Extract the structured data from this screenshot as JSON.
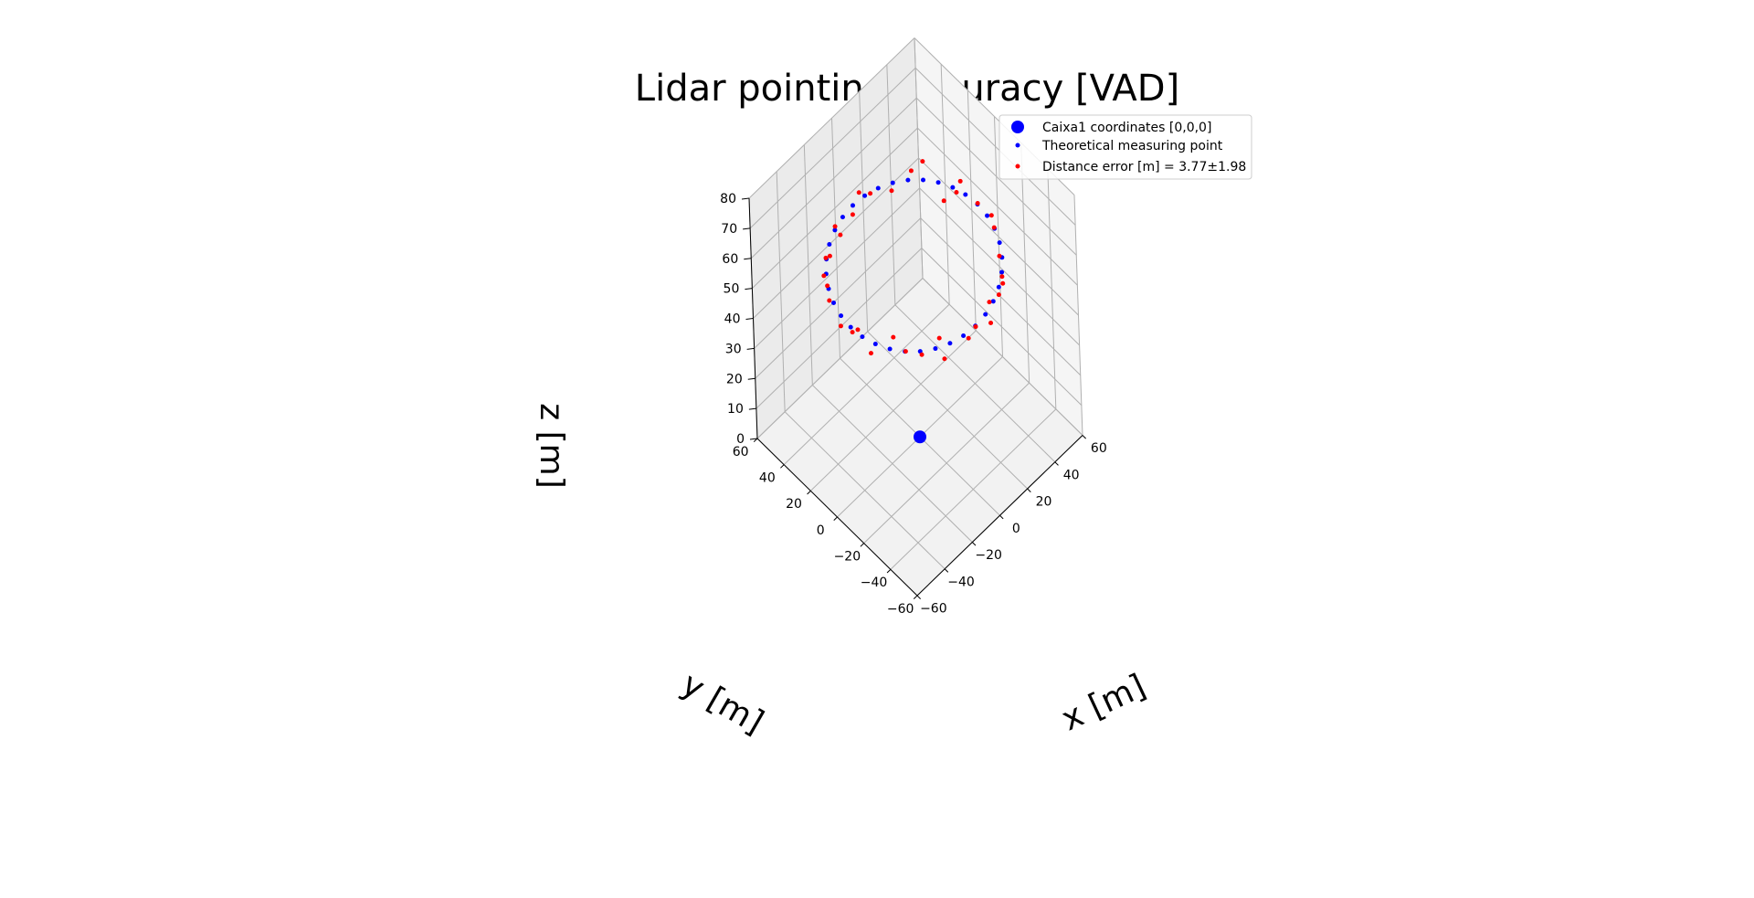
{
  "chart_data": {
    "type": "scatter",
    "projection": "3d",
    "title": "Lidar pointing accuracy [VAD]",
    "xlabel": "x [m]",
    "ylabel": "y [m]",
    "zlabel": "z [m]",
    "xlim": [
      -60,
      60
    ],
    "ylim": [
      -60,
      60
    ],
    "zlim": [
      0,
      80
    ],
    "xticks": [
      -60,
      -40,
      -20,
      0,
      20,
      40,
      60
    ],
    "yticks": [
      -60,
      -40,
      -20,
      0,
      20,
      40,
      60
    ],
    "zticks": [
      0,
      10,
      20,
      30,
      40,
      50,
      60,
      70,
      80
    ],
    "grid": true,
    "legend": {
      "location": "upper-right",
      "entries": [
        {
          "label": "Caixa1 coordinates [0,0,0]",
          "color": "#0000ff",
          "marker": "large-dot"
        },
        {
          "label": "Theoretical measuring point",
          "color": "#0000ff",
          "marker": "small-dot"
        },
        {
          "label": "Distance error [m] = 3.77±1.98",
          "color": "#ff0000",
          "marker": "small-dot"
        }
      ]
    },
    "series": [
      {
        "name": "Caixa1 coordinates [0,0,0]",
        "color": "#0000ff",
        "points": [
          [
            0,
            0,
            0
          ]
        ]
      },
      {
        "name": "Theoretical measuring point",
        "color": "#0000ff",
        "points": [
          [
            46.0,
            0.0,
            57
          ],
          [
            45.2,
            8.2,
            57
          ],
          [
            43.2,
            15.7,
            57
          ],
          [
            39.8,
            23.0,
            57
          ],
          [
            35.2,
            29.6,
            57
          ],
          [
            29.6,
            35.2,
            57
          ],
          [
            23.0,
            39.8,
            57
          ],
          [
            15.7,
            43.2,
            57
          ],
          [
            8.0,
            45.3,
            57
          ],
          [
            0.0,
            46.0,
            57
          ],
          [
            -8.0,
            45.3,
            57
          ],
          [
            -15.7,
            43.2,
            57
          ],
          [
            -23.0,
            39.8,
            57
          ],
          [
            -29.6,
            35.2,
            57
          ],
          [
            -35.2,
            29.6,
            57
          ],
          [
            -39.8,
            23.0,
            57
          ],
          [
            -43.2,
            15.7,
            57
          ],
          [
            -45.3,
            8.0,
            57
          ],
          [
            -46.0,
            0.0,
            57
          ],
          [
            -45.3,
            -8.0,
            57
          ],
          [
            -43.2,
            -15.7,
            57
          ],
          [
            -39.8,
            -23.0,
            57
          ],
          [
            -35.2,
            -29.6,
            57
          ],
          [
            -29.6,
            -35.2,
            57
          ],
          [
            -23.0,
            -39.8,
            57
          ],
          [
            -15.7,
            -43.2,
            57
          ],
          [
            -8.0,
            -45.3,
            57
          ],
          [
            0.0,
            -46.0,
            57
          ],
          [
            8.0,
            -45.3,
            57
          ],
          [
            15.7,
            -43.2,
            57
          ],
          [
            23.0,
            -39.8,
            57
          ],
          [
            29.6,
            -35.2,
            57
          ],
          [
            35.2,
            -29.6,
            57
          ],
          [
            39.8,
            -23.0,
            57
          ],
          [
            43.2,
            -15.7,
            57
          ],
          [
            45.3,
            -8.0,
            57
          ]
        ]
      },
      {
        "name": "Distance error [m] = 3.77±1.98",
        "color": "#ff0000",
        "points": [
          [
            47.5,
            1.5,
            56
          ],
          [
            44.0,
            10.5,
            61
          ],
          [
            46.0,
            16.0,
            54
          ],
          [
            41.5,
            21.0,
            51
          ],
          [
            36.5,
            31.0,
            62
          ],
          [
            31.0,
            34.0,
            60
          ],
          [
            24.0,
            42.0,
            53
          ],
          [
            13.0,
            46.5,
            55
          ],
          [
            6.0,
            47.5,
            58
          ],
          [
            2.0,
            48.5,
            52
          ],
          [
            -9.0,
            46.5,
            51
          ],
          [
            -17.5,
            41.0,
            60
          ],
          [
            -25.0,
            37.5,
            55
          ],
          [
            -31.5,
            33.5,
            59
          ],
          [
            -37.0,
            27.0,
            55
          ],
          [
            -41.0,
            25.0,
            61
          ],
          [
            -45.0,
            17.0,
            58
          ],
          [
            -47.0,
            6.5,
            55
          ],
          [
            -44.0,
            1.0,
            54
          ],
          [
            -46.5,
            -6.0,
            59
          ],
          [
            -45.0,
            -14.0,
            54
          ],
          [
            -38.5,
            -24.5,
            61
          ],
          [
            -36.0,
            -31.0,
            58
          ],
          [
            -27.0,
            -33.5,
            54
          ],
          [
            -22.0,
            -42.0,
            61
          ],
          [
            -17.0,
            -40.0,
            51
          ],
          [
            -6.0,
            -47.0,
            56
          ],
          [
            2.0,
            -44.0,
            55
          ],
          [
            10.0,
            -47.0,
            54
          ],
          [
            14.0,
            -42.0,
            57
          ],
          [
            24.5,
            -38.0,
            53
          ],
          [
            28.0,
            -37.5,
            55
          ],
          [
            33.5,
            -31.0,
            52
          ],
          [
            38.0,
            -24.5,
            54
          ],
          [
            44.5,
            -14.0,
            56
          ],
          [
            47.0,
            -9.5,
            57
          ]
        ]
      }
    ]
  }
}
